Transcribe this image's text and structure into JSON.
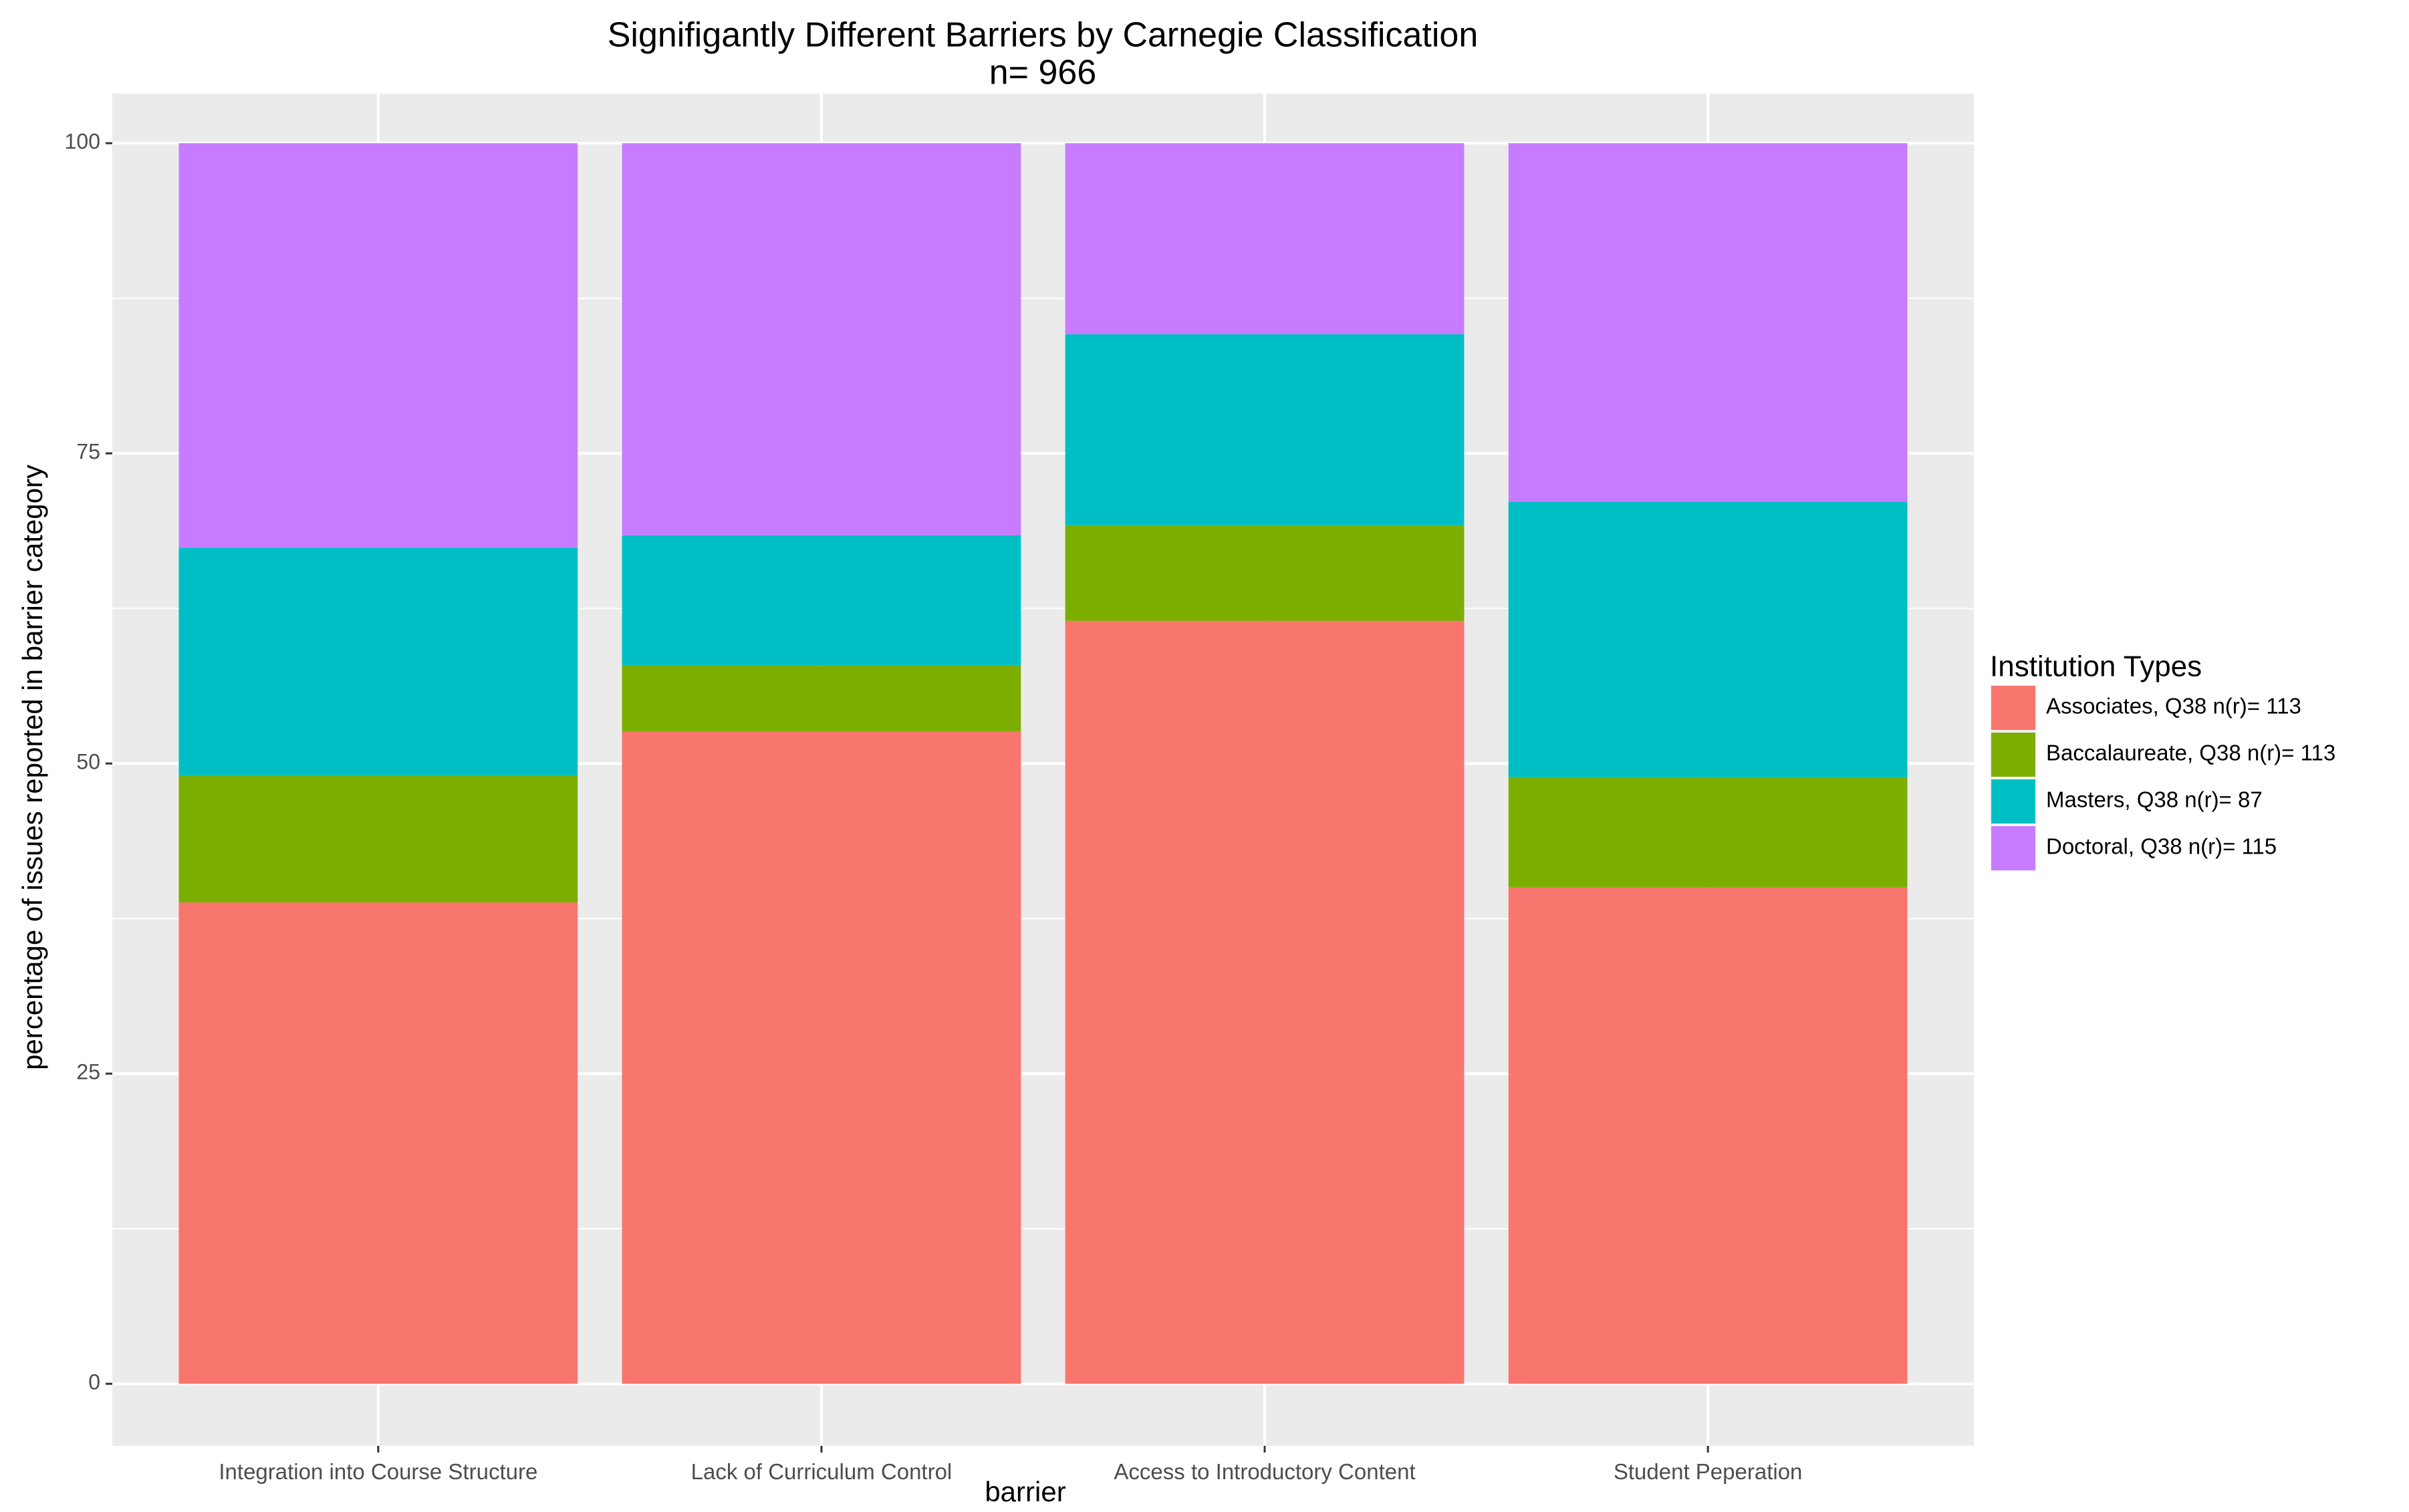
{
  "chart_data": {
    "type": "bar",
    "stacked": true,
    "title": "Signifigantly Different Barriers by Carnegie Classification",
    "subtitle": "n= 966",
    "xlabel": "barrier",
    "ylabel": "percentage of issues reported in barrier category",
    "categories": [
      "Integration into Course Structure",
      "Lack of Curriculum Control",
      "Access to Introductory Content",
      "Student Peperation"
    ],
    "ylim": [
      -5,
      104
    ],
    "yticks": [
      "0",
      "25",
      "50",
      "75",
      "100"
    ],
    "grid": true,
    "legend_position": "right",
    "legend_title": "Institution Types",
    "series": [
      {
        "name": "Associates, Q38 n(r)= 113",
        "color": "#F8766D",
        "values": [
          38.8,
          52.6,
          61.5,
          40.0
        ]
      },
      {
        "name": "Baccalaureate, Q38 n(r)= 113",
        "color": "#7CAE00",
        "values": [
          10.2,
          5.3,
          7.7,
          8.9
        ]
      },
      {
        "name": "Masters, Q38 n(r)= 87",
        "color": "#00BFC4",
        "values": [
          18.4,
          10.5,
          15.4,
          22.2
        ]
      },
      {
        "name": "Doctoral, Q38 n(r)= 115",
        "color": "#C77CFF",
        "values": [
          32.6,
          31.6,
          15.4,
          28.9
        ]
      }
    ],
    "colors": {
      "panel": "#EBEBEB",
      "grid": "#FFFFFF",
      "text": "#000000",
      "tick_text": "#4D4D4D",
      "tick": "#333333"
    }
  }
}
